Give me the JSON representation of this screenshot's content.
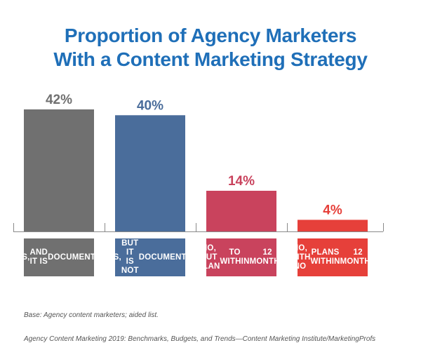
{
  "title_lines": [
    "Proportion of Agency Marketers",
    "With a Content Marketing Strategy"
  ],
  "chart_data": {
    "type": "bar",
    "title": "Proportion of Agency Marketers With a Content Marketing Strategy",
    "categories": [
      [
        "YES,",
        "AND IT IS",
        "DOCUMENTED"
      ],
      [
        "YES,",
        "BUT IT IS NOT",
        "DOCUMENTED"
      ],
      [
        "NO, BUT PLAN",
        "TO WITHIN",
        "12 MONTHS"
      ],
      [
        "NO, WITH NO",
        "PLANS WITHIN",
        "12 MONTHS"
      ]
    ],
    "values": [
      42,
      40,
      14,
      4
    ],
    "value_labels": [
      "42%",
      "40%",
      "14%",
      "4%"
    ],
    "colors": [
      "#707070",
      "#4a6d9b",
      "#c9435d",
      "#e6403a"
    ],
    "ylim": [
      0,
      42
    ],
    "grid": false,
    "legend": "none"
  },
  "notes": {
    "base": "Base: Agency content marketers; aided list.",
    "source": "Agency Content Marketing 2019: Benchmarks, Budgets, and Trends—Content Marketing Institute/MarketingProfs"
  }
}
